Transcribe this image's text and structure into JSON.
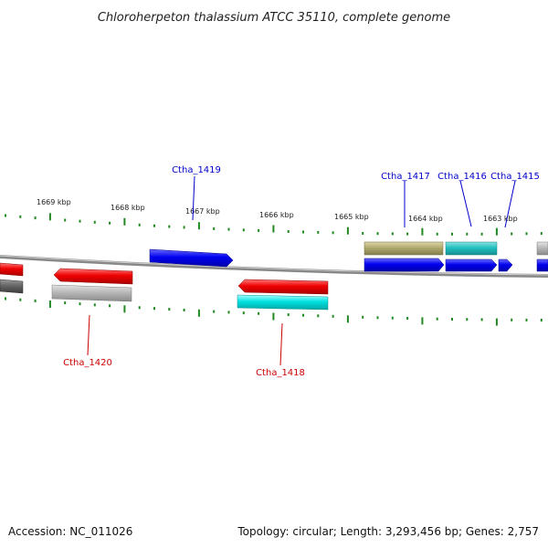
{
  "title": "Chloroherpeton thalassium ATCC 35110, complete genome",
  "footer": {
    "accession": "Accession: NC_011026",
    "summary": "Topology: circular; Length: 3,293,456 bp; Genes: 2,757"
  },
  "scale_labels": [
    "1669 kbp",
    "1668 kbp",
    "1667 kbp",
    "1666 kbp",
    "1665 kbp",
    "1664 kbp",
    "1663 kbp"
  ],
  "gene_labels": {
    "top": [
      "Ctha_1419",
      "Ctha_1417",
      "Ctha_1416",
      "Ctha_1415"
    ],
    "bottom": [
      "Ctha_1420",
      "Ctha_1418"
    ]
  },
  "colors": {
    "forward_cds": "#0000ee",
    "reverse_cds": "#ee0000",
    "highlight_cyan": "#00e0e0",
    "teal": "#20c0c0",
    "olive": "#b0aa70",
    "gray_feature": "#b8b8b8",
    "dark_gray_feature": "#666666",
    "backbone": "#888888",
    "tick": "#228822"
  }
}
